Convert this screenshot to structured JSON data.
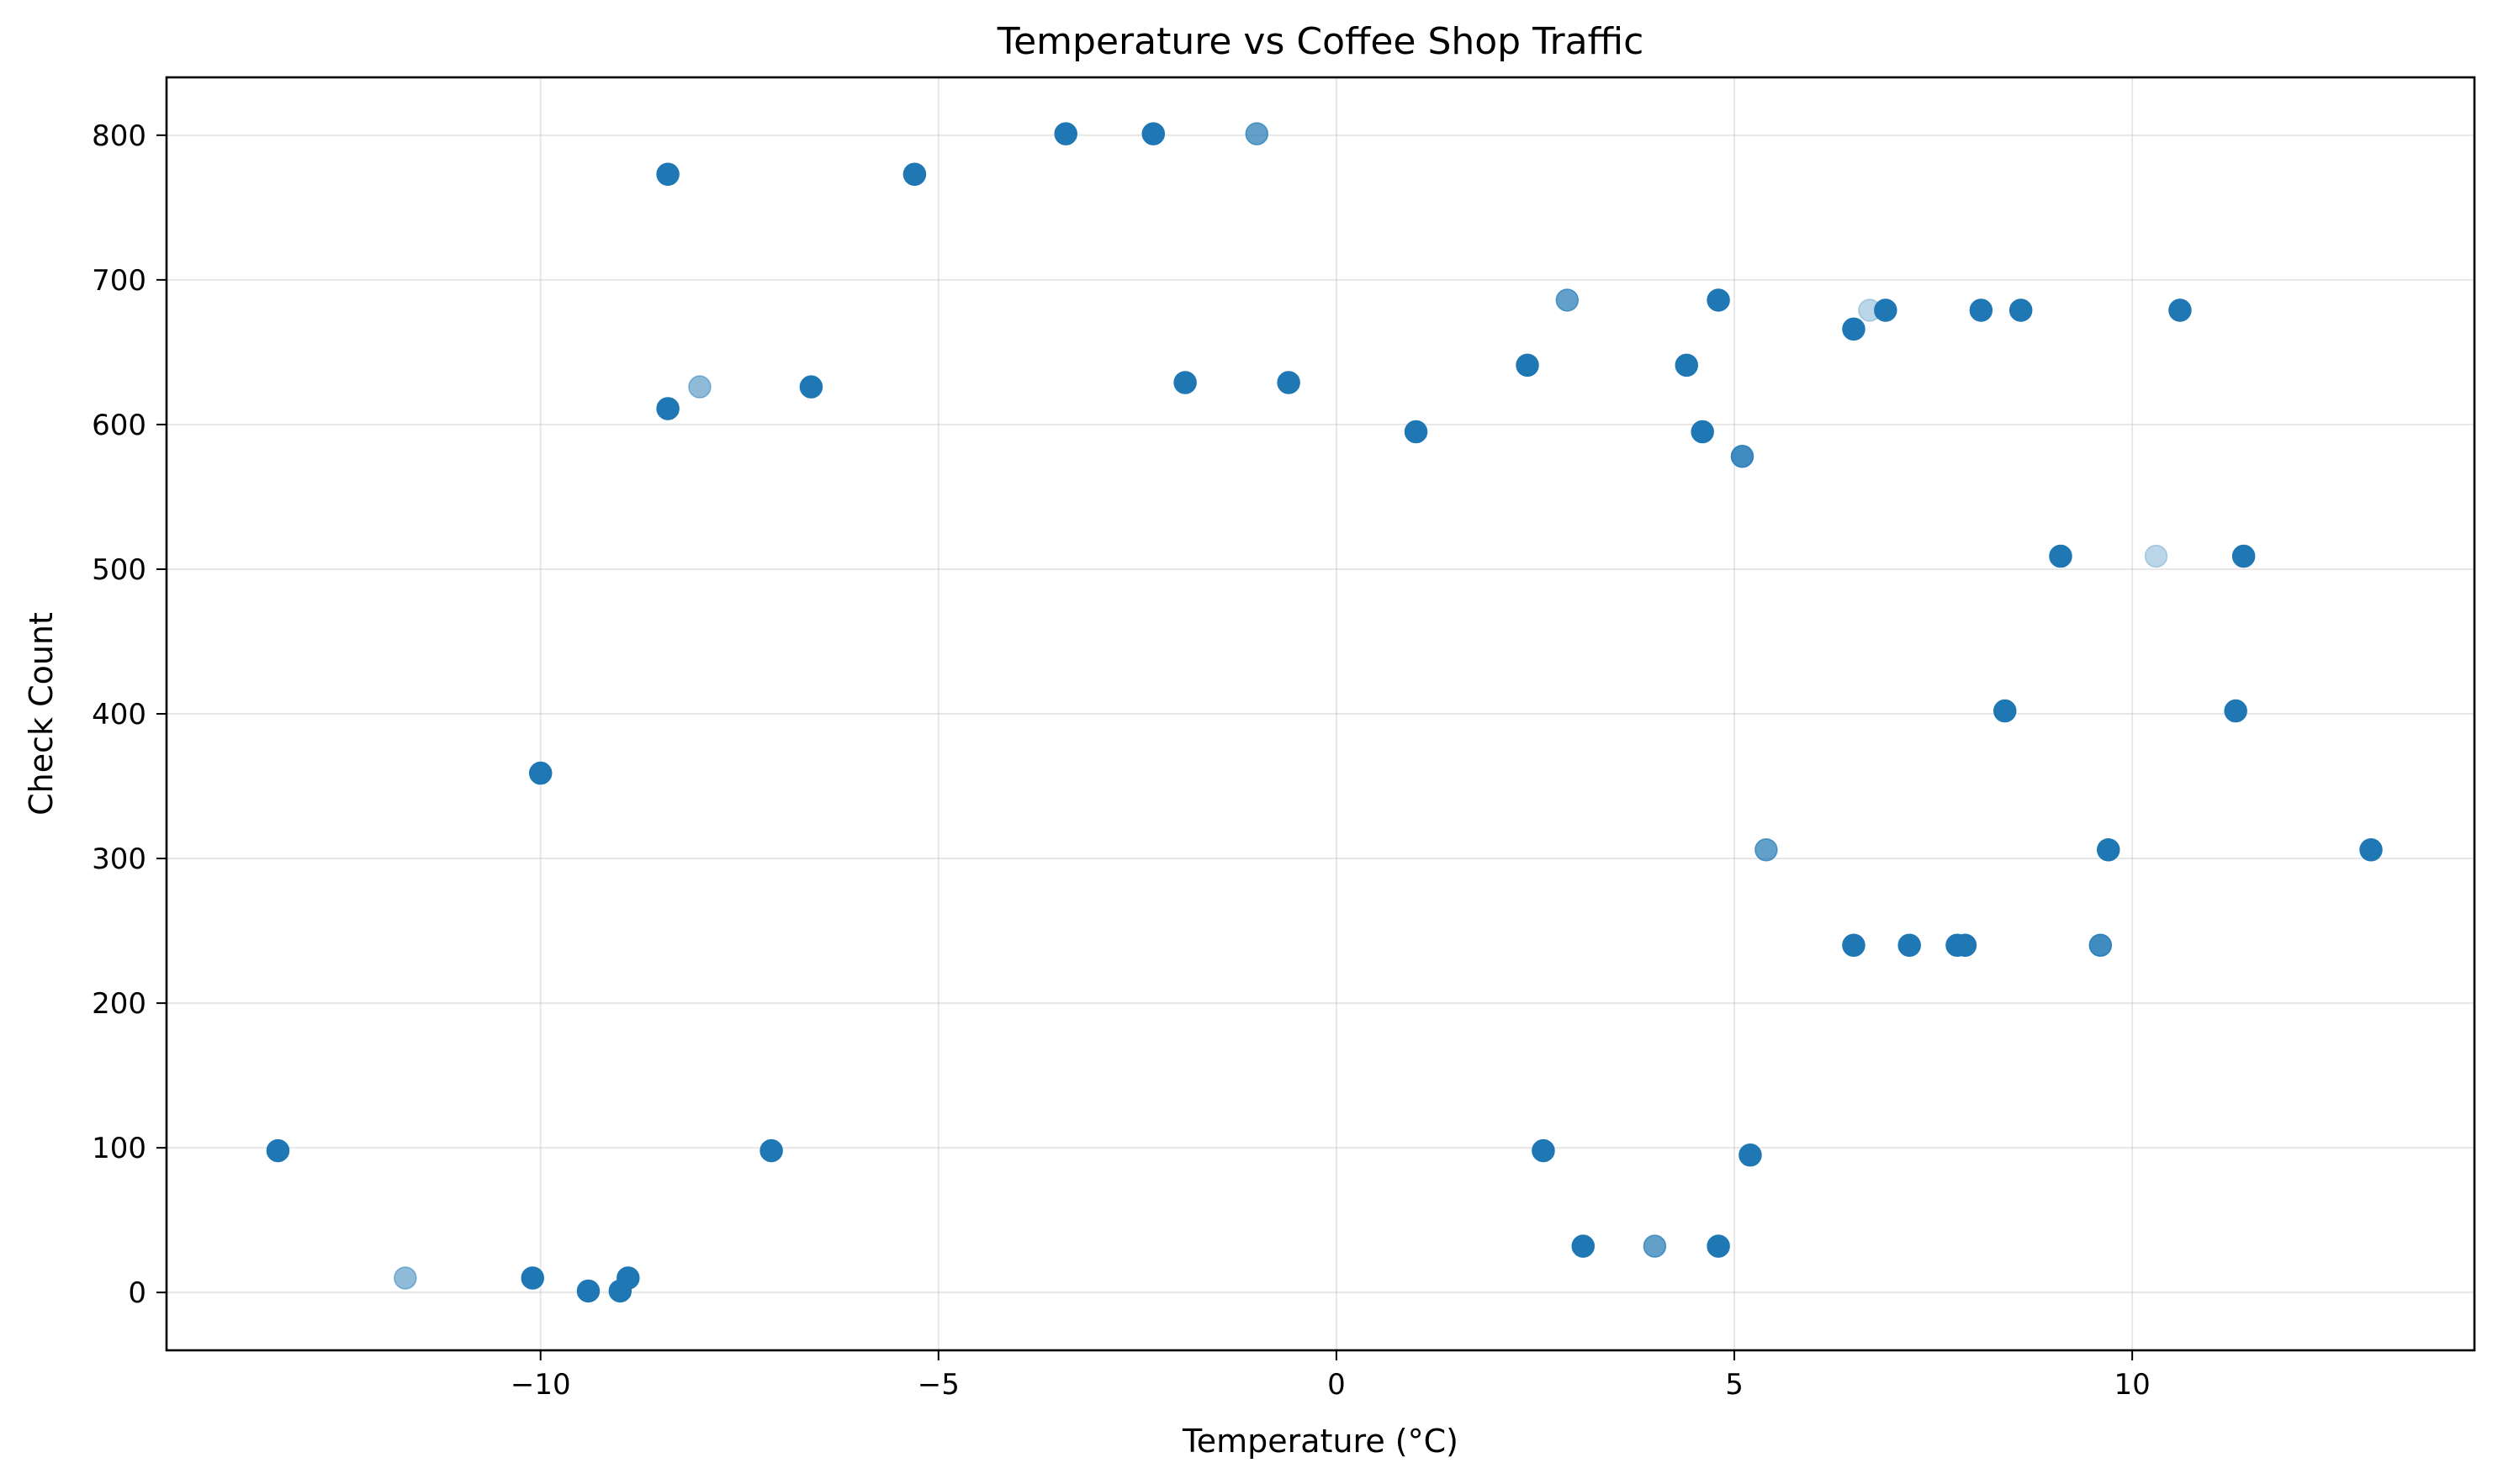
{
  "chart_data": {
    "type": "scatter",
    "title": "Temperature vs Coffee Shop Traffic",
    "xlabel": "Temperature (°C)",
    "ylabel": "Check Count",
    "xlim": [
      -14.7,
      14.3
    ],
    "ylim": [
      -40,
      840
    ],
    "xticks": [
      -10,
      -5,
      0,
      5,
      10
    ],
    "xtick_labels": [
      "−10",
      "−5",
      "0",
      "5",
      "10"
    ],
    "yticks": [
      0,
      100,
      200,
      300,
      400,
      500,
      600,
      700,
      800
    ],
    "ytick_labels": [
      "0",
      "100",
      "200",
      "300",
      "400",
      "500",
      "600",
      "700",
      "800"
    ],
    "grid": true,
    "marker_color": "#1f77b4",
    "points": [
      {
        "x": -13.3,
        "y": 98,
        "alpha": 1.0
      },
      {
        "x": -11.7,
        "y": 10,
        "alpha": 0.5
      },
      {
        "x": -10.1,
        "y": 10,
        "alpha": 1.0
      },
      {
        "x": -10.0,
        "y": 359,
        "alpha": 1.0
      },
      {
        "x": -9.4,
        "y": 1,
        "alpha": 1.0
      },
      {
        "x": -9.0,
        "y": 1,
        "alpha": 1.0
      },
      {
        "x": -8.9,
        "y": 10,
        "alpha": 1.0
      },
      {
        "x": -8.4,
        "y": 773,
        "alpha": 1.0
      },
      {
        "x": -8.4,
        "y": 611,
        "alpha": 1.0
      },
      {
        "x": -8.0,
        "y": 626,
        "alpha": 0.5
      },
      {
        "x": -7.1,
        "y": 98,
        "alpha": 1.0
      },
      {
        "x": -6.6,
        "y": 626,
        "alpha": 1.0
      },
      {
        "x": -5.3,
        "y": 773,
        "alpha": 1.0
      },
      {
        "x": -3.4,
        "y": 801,
        "alpha": 1.0
      },
      {
        "x": -2.3,
        "y": 801,
        "alpha": 1.0
      },
      {
        "x": -1.9,
        "y": 629,
        "alpha": 1.0
      },
      {
        "x": -1.0,
        "y": 801,
        "alpha": 0.7
      },
      {
        "x": -0.6,
        "y": 629,
        "alpha": 1.0
      },
      {
        "x": 1.0,
        "y": 595,
        "alpha": 1.0
      },
      {
        "x": 2.4,
        "y": 641,
        "alpha": 1.0
      },
      {
        "x": 2.6,
        "y": 98,
        "alpha": 1.0
      },
      {
        "x": 2.9,
        "y": 686,
        "alpha": 0.7
      },
      {
        "x": 3.1,
        "y": 32,
        "alpha": 1.0
      },
      {
        "x": 4.0,
        "y": 32,
        "alpha": 0.7
      },
      {
        "x": 4.4,
        "y": 641,
        "alpha": 1.0
      },
      {
        "x": 4.6,
        "y": 595,
        "alpha": 1.0
      },
      {
        "x": 4.8,
        "y": 686,
        "alpha": 1.0
      },
      {
        "x": 4.8,
        "y": 32,
        "alpha": 1.0
      },
      {
        "x": 5.1,
        "y": 578,
        "alpha": 0.85
      },
      {
        "x": 5.2,
        "y": 95,
        "alpha": 1.0
      },
      {
        "x": 5.4,
        "y": 306,
        "alpha": 0.7
      },
      {
        "x": 6.5,
        "y": 666,
        "alpha": 1.0
      },
      {
        "x": 6.5,
        "y": 240,
        "alpha": 1.0
      },
      {
        "x": 6.7,
        "y": 679,
        "alpha": 0.3
      },
      {
        "x": 6.9,
        "y": 679,
        "alpha": 1.0
      },
      {
        "x": 7.2,
        "y": 240,
        "alpha": 1.0
      },
      {
        "x": 7.8,
        "y": 240,
        "alpha": 1.0
      },
      {
        "x": 7.9,
        "y": 240,
        "alpha": 1.0
      },
      {
        "x": 8.1,
        "y": 679,
        "alpha": 1.0
      },
      {
        "x": 8.4,
        "y": 402,
        "alpha": 1.0
      },
      {
        "x": 8.6,
        "y": 679,
        "alpha": 1.0
      },
      {
        "x": 9.1,
        "y": 509,
        "alpha": 1.0
      },
      {
        "x": 9.6,
        "y": 240,
        "alpha": 0.85
      },
      {
        "x": 9.7,
        "y": 306,
        "alpha": 1.0
      },
      {
        "x": 10.3,
        "y": 509,
        "alpha": 0.3
      },
      {
        "x": 10.6,
        "y": 679,
        "alpha": 1.0
      },
      {
        "x": 11.3,
        "y": 402,
        "alpha": 1.0
      },
      {
        "x": 11.4,
        "y": 509,
        "alpha": 1.0
      },
      {
        "x": 13.0,
        "y": 306,
        "alpha": 1.0
      }
    ]
  }
}
